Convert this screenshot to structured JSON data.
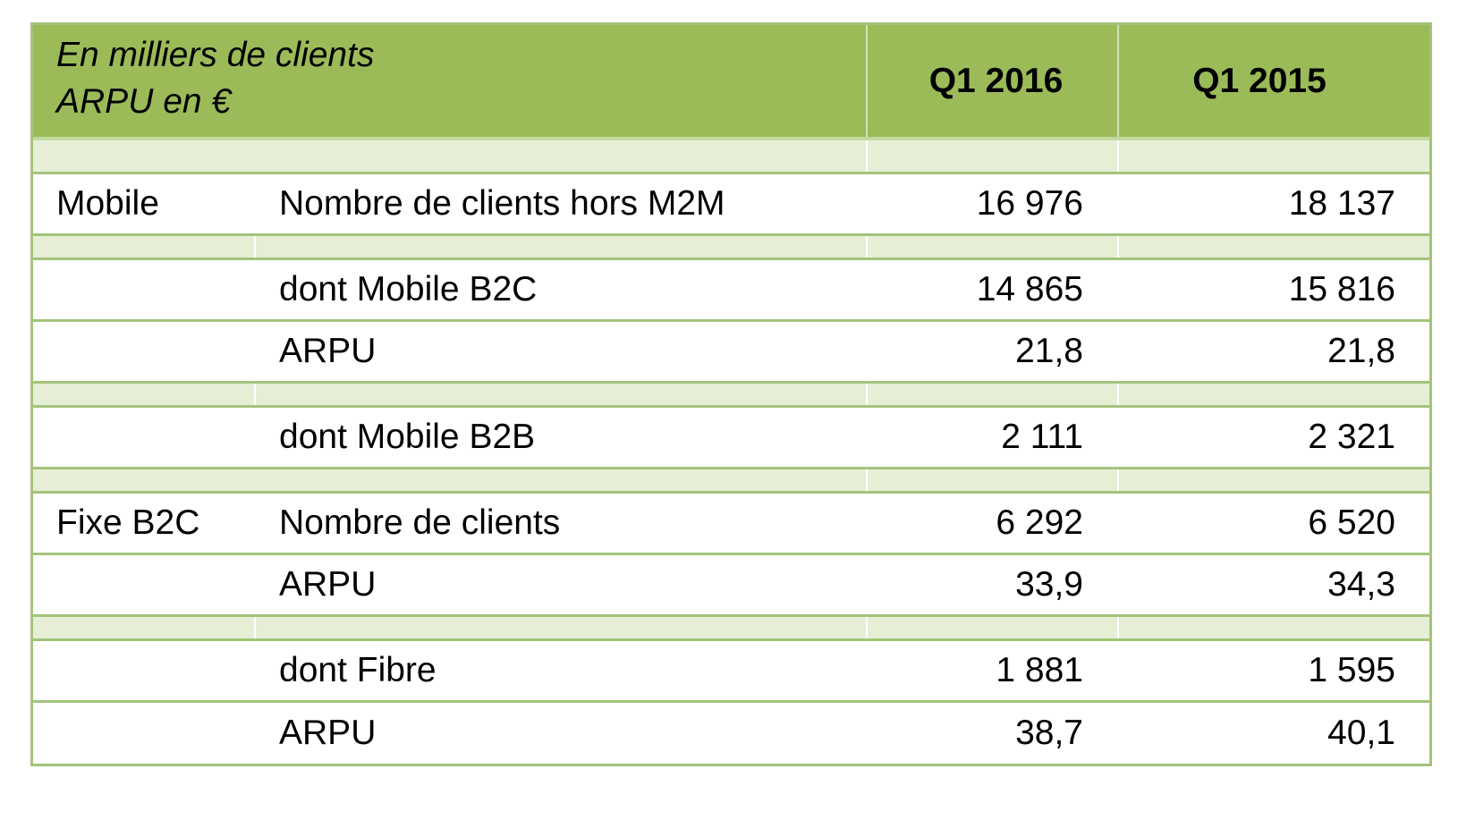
{
  "header": {
    "title_line1": "En milliers de clients",
    "title_line2": "ARPU en €",
    "col_q1_2016": "Q1 2016",
    "col_q1_2015": "Q1 2015"
  },
  "rows": [
    {
      "category": "Mobile",
      "label": "Nombre de clients hors M2M",
      "q1_2016": "16 976",
      "q1_2015": "18 137"
    },
    {
      "category": "",
      "label": "dont Mobile B2C",
      "q1_2016": "14 865",
      "q1_2015": "15 816"
    },
    {
      "category": "",
      "label": "ARPU",
      "q1_2016": "21,8",
      "q1_2015": "21,8"
    },
    {
      "category": "",
      "label": "dont Mobile B2B",
      "q1_2016": "2 111",
      "q1_2015": "2 321"
    },
    {
      "category": "Fixe B2C",
      "label": "Nombre de clients",
      "q1_2016": "6 292",
      "q1_2015": "6 520"
    },
    {
      "category": "",
      "label": "ARPU",
      "q1_2016": "33,9",
      "q1_2015": "34,3"
    },
    {
      "category": "",
      "label": "dont Fibre",
      "q1_2016": "1 881",
      "q1_2015": "1 595"
    },
    {
      "category": "",
      "label": "ARPU",
      "q1_2016": "38,7",
      "q1_2015": "40,1"
    }
  ],
  "colors": {
    "header_bg": "#9bbb59",
    "spacer_bg": "#e6eed6",
    "border": "#a3c47a"
  }
}
